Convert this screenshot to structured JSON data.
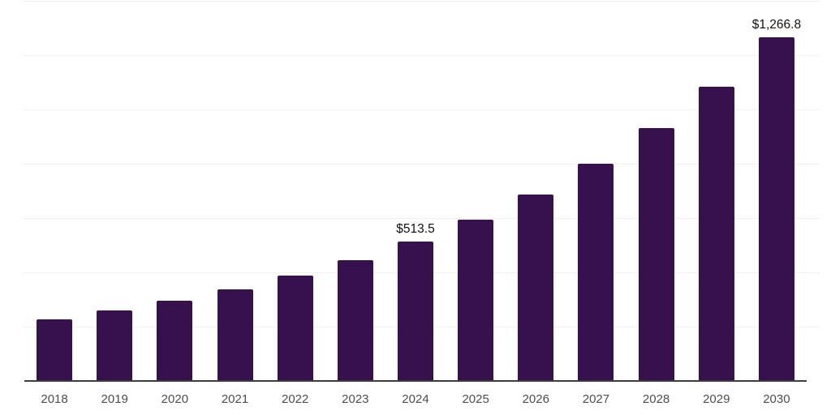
{
  "chart_data": {
    "type": "bar",
    "title": "",
    "xlabel": "",
    "ylabel": "",
    "categories": [
      "2018",
      "2019",
      "2020",
      "2021",
      "2022",
      "2023",
      "2024",
      "2025",
      "2026",
      "2027",
      "2028",
      "2029",
      "2030"
    ],
    "values": [
      225.4,
      259.7,
      295.5,
      338.8,
      388.1,
      444.8,
      513.5,
      595.5,
      686.6,
      800.0,
      931.4,
      1083.6,
      1266.8
    ],
    "bar_labels": {
      "2024": "$513.5",
      "2030": "$1,266.8"
    },
    "ylim": [
      0,
      1400
    ],
    "gridline_step": 200,
    "grid": "horizontal-only",
    "y_axis_tick_labels_visible": false,
    "legend": "none"
  },
  "colors": {
    "bar": "#36114E",
    "gridline": "#F0F0F0",
    "axis_line": "#3D3D3D",
    "tick_label": "#4D4D4D",
    "data_label": "#111111",
    "background": "#FFFFFF"
  }
}
